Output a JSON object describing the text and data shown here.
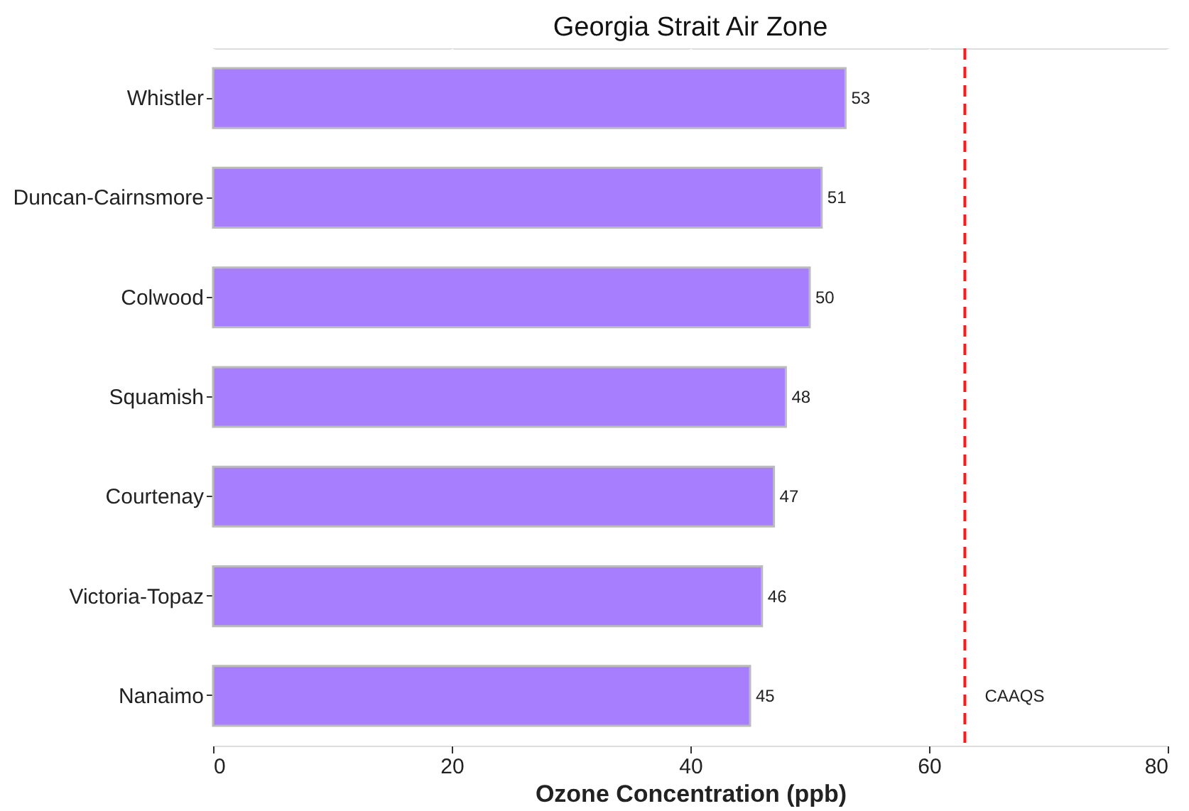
{
  "chart_data": {
    "type": "bar",
    "orientation": "horizontal",
    "title": "Georgia Strait Air Zone",
    "xlabel": "Ozone Concentration (ppb)",
    "categories": [
      "Whistler",
      "Duncan-Cairnsmore",
      "Colwood",
      "Squamish",
      "Courtenay",
      "Victoria-Topaz",
      "Nanaimo"
    ],
    "values": [
      53,
      51,
      50,
      48,
      47,
      46,
      45
    ],
    "color": "#a77ffe",
    "xlim": [
      0,
      80
    ],
    "xticks": [
      0,
      20,
      40,
      60,
      80
    ],
    "grid": true,
    "data_labels": true,
    "ref_lines": [
      {
        "axis": "x",
        "value": 63,
        "label": "CAAQS",
        "color": "#ff1a1a",
        "line_style": "dashed"
      }
    ]
  }
}
